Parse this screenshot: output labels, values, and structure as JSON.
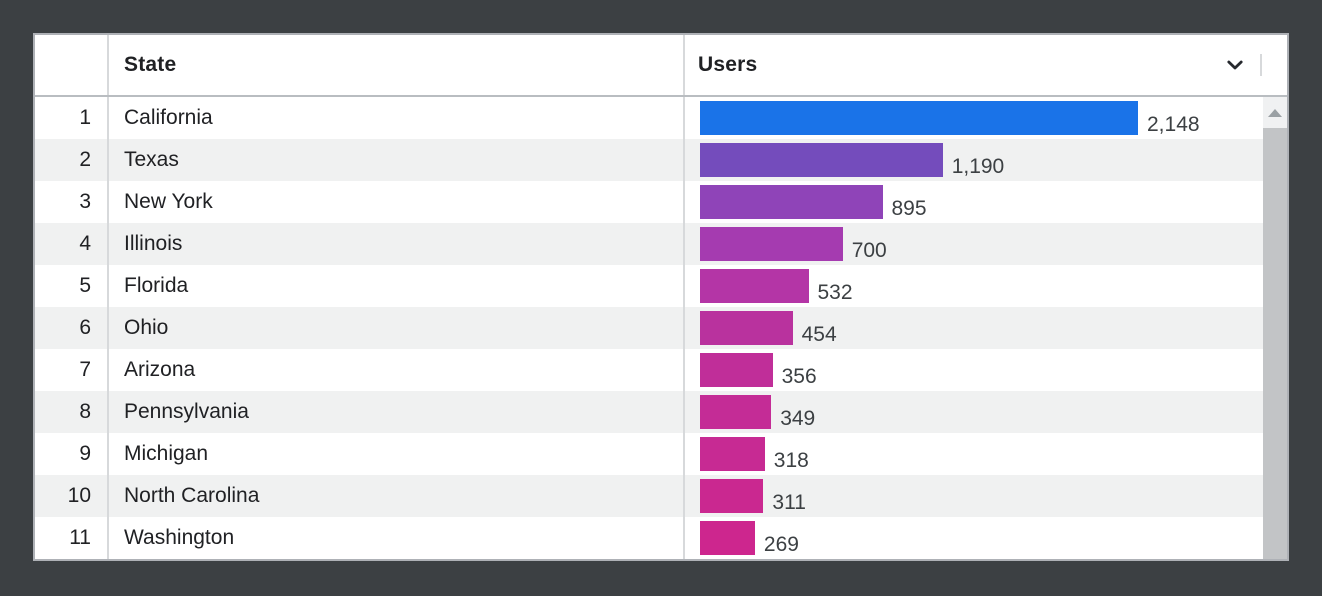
{
  "frame": {
    "background_color": "#3c4043",
    "panel_border_color": "#aeb1b6"
  },
  "table": {
    "columns": [
      {
        "label": "State"
      },
      {
        "label": "Users",
        "sort_icon": "chevron-down-icon"
      }
    ],
    "rows": [
      {
        "rank": "1",
        "state": "California",
        "users": "2,148",
        "value": 2148,
        "bar_color": "#1a73e8"
      },
      {
        "rank": "2",
        "state": "Texas",
        "users": "1,190",
        "value": 1190,
        "bar_color": "#744cbc"
      },
      {
        "rank": "3",
        "state": "New York",
        "users": "895",
        "value": 895,
        "bar_color": "#8f44b8"
      },
      {
        "rank": "4",
        "state": "Illinois",
        "users": "700",
        "value": 700,
        "bar_color": "#a53bb0"
      },
      {
        "rank": "5",
        "state": "Florida",
        "users": "532",
        "value": 532,
        "bar_color": "#b435a6"
      },
      {
        "rank": "6",
        "state": "Ohio",
        "users": "454",
        "value": 454,
        "bar_color": "#b9329e"
      },
      {
        "rank": "7",
        "state": "Arizona",
        "users": "356",
        "value": 356,
        "bar_color": "#c02e99"
      },
      {
        "rank": "8",
        "state": "Pennsylvania",
        "users": "349",
        "value": 349,
        "bar_color": "#c42c96"
      },
      {
        "rank": "9",
        "state": "Michigan",
        "users": "318",
        "value": 318,
        "bar_color": "#c72a93"
      },
      {
        "rank": "10",
        "state": "North Carolina",
        "users": "311",
        "value": 311,
        "bar_color": "#ca2890"
      },
      {
        "rank": "11",
        "state": "Washington",
        "users": "269",
        "value": 269,
        "bar_color": "#cd268e"
      }
    ]
  },
  "chart_data": {
    "type": "bar",
    "orientation": "horizontal",
    "title": "",
    "categories": [
      "California",
      "Texas",
      "New York",
      "Illinois",
      "Florida",
      "Ohio",
      "Arizona",
      "Pennsylvania",
      "Michigan",
      "North Carolina",
      "Washington"
    ],
    "values": [
      2148,
      1190,
      895,
      700,
      532,
      454,
      356,
      349,
      318,
      311,
      269
    ],
    "value_labels": [
      "2,148",
      "1,190",
      "895",
      "700",
      "532",
      "454",
      "356",
      "349",
      "318",
      "311",
      "269"
    ],
    "bar_colors": [
      "#1a73e8",
      "#744cbc",
      "#8f44b8",
      "#a53bb0",
      "#b435a6",
      "#b9329e",
      "#c02e99",
      "#c42c96",
      "#c72a93",
      "#ca2890",
      "#cd268e"
    ],
    "xlabel": "Users",
    "ylabel": "State",
    "xlim": [
      0,
      2148
    ],
    "grid": false,
    "legend": false
  },
  "scrollbar": {
    "up_arrow_icon": "triangle-up",
    "thumb_color": "#c2c4c6",
    "button_color": "#f0f1f2"
  }
}
